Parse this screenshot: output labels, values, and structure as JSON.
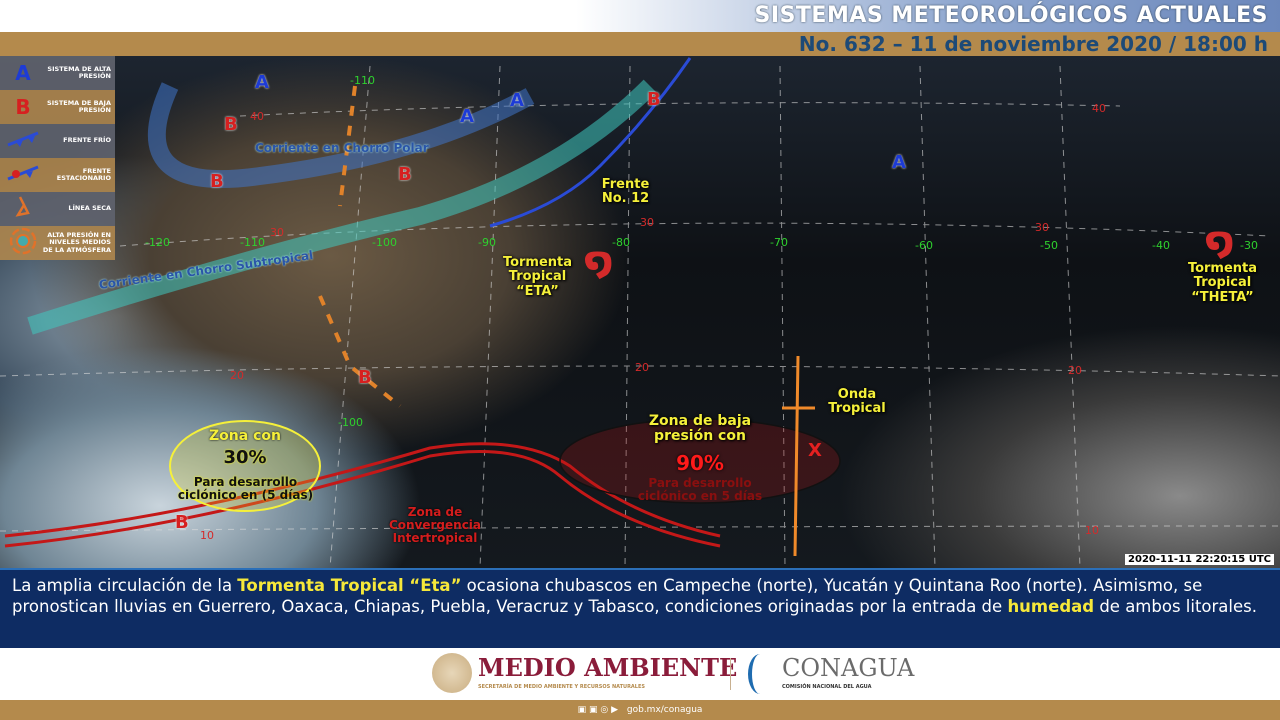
{
  "header": {
    "title": "SISTEMAS METEOROLÓGICOS ACTUALES",
    "subtitle": "No. 632 – 11 de noviembre 2020 / 18:00 h"
  },
  "legend": [
    {
      "icon": "A",
      "label": "SISTEMA DE ALTA PRESIÓN",
      "color": "#1d3bd6"
    },
    {
      "icon": "B",
      "label": "SISTEMA DE BAJA PRESIÓN",
      "color": "#d62020"
    },
    {
      "icon": "cold-front",
      "label": "FRENTE FRÍO",
      "color": "#2a4bd6"
    },
    {
      "icon": "stationary-front",
      "label": "FRENTE ESTACIONARIO",
      "color": "#2a4bd6"
    },
    {
      "icon": "dry-line",
      "label": "LÍNEA SECA",
      "color": "#e0722a"
    },
    {
      "icon": "mid-level-high",
      "label": "ALTA PRESIÓN EN NIVELES MEDIOS DE LA ATMÓSFERA",
      "color": "#e0722a"
    }
  ],
  "map": {
    "labels": {
      "polar_jet": "Corriente en  Chorro Polar",
      "subtropical_jet": "Corriente en  Chorro Subtropical",
      "front": "Frente No. 12",
      "eta": "Tormenta Tropical “ETA”",
      "theta": "Tormenta Tropical “THETA”",
      "wave": "Onda Tropical",
      "zone90_title": "Zona de baja presión con",
      "zone90_pct": "90%",
      "zone90_desc": "Para desarrollo ciclónico en 5 días",
      "zone30_title": "Zona con",
      "zone30_pct": "30%",
      "zone30_desc": "Para desarrollo ciclónico en (5 días)",
      "itcz": "Zona de  Convergencia Intertropical",
      "wave_x": "X"
    },
    "longitudes": [
      "-120",
      "-110",
      "-110",
      "-100",
      "-90",
      "-80",
      "-70",
      "-60",
      "-50",
      "-40",
      "-30",
      "-100"
    ],
    "latitudes": [
      "40",
      "40",
      "30",
      "30",
      "30",
      "20",
      "20",
      "20",
      "10",
      "10"
    ],
    "highs": [
      "A",
      "A",
      "A",
      "A"
    ],
    "lows": [
      "B",
      "B",
      "B",
      "B",
      "B",
      "B"
    ],
    "timestamp": "2020-11-11 22:20:15 UTC"
  },
  "bulletin": {
    "p1": "La amplia circulación de la ",
    "h1": "Tormenta Tropical “Eta”",
    "p2": " ocasiona chubascos en Campeche (norte), Yucatán y Quintana Roo (norte). Asimismo, se pronostican lluvias en Guerrero, Oaxaca, Chiapas, Puebla, Veracruz y Tabasco, condiciones originadas por la entrada de ",
    "h2": "humedad",
    "p3": " de ambos litorales."
  },
  "logos": {
    "semarnat": "MEDIO AMBIENTE",
    "semarnat_sub": "SECRETARÍA DE MEDIO AMBIENTE Y RECURSOS NATURALES",
    "conagua": "CONAGUA",
    "conagua_sub": "COMISIÓN NACIONAL DEL AGUA"
  },
  "footer": {
    "social_icons": [
      "facebook-icon",
      "twitter-icon",
      "instagram-icon",
      "youtube-icon"
    ],
    "url": "gob.mx/conagua"
  }
}
